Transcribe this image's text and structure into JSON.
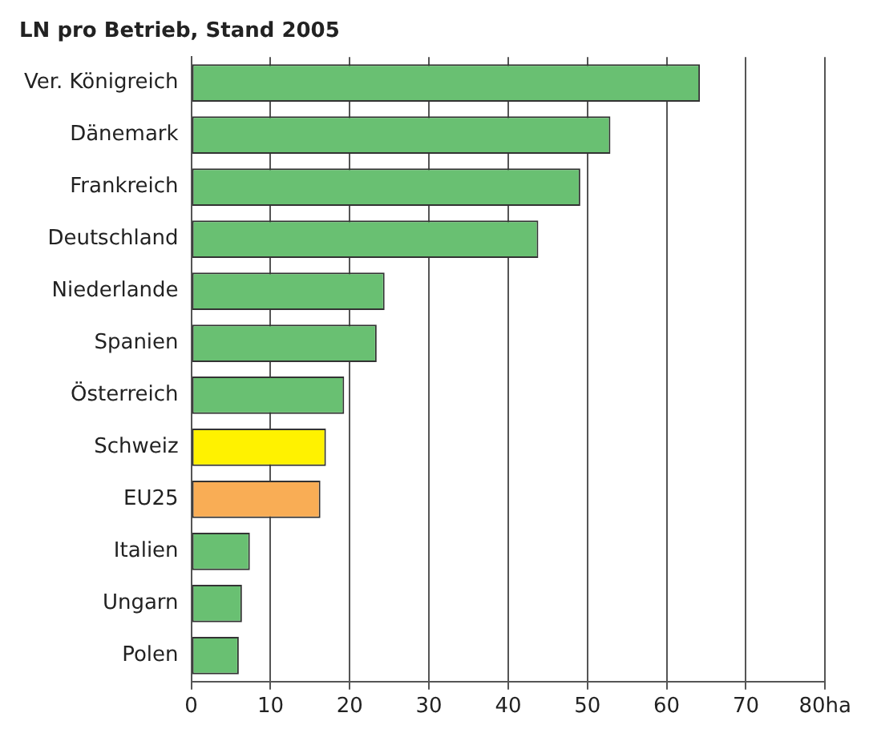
{
  "chart_data": {
    "type": "bar",
    "orientation": "horizontal",
    "title": "LN pro Betrieb, Stand 2005",
    "categories": [
      "Ver. Königreich",
      "Dänemark",
      "Frankreich",
      "Deutschland",
      "Niederlande",
      "Spanien",
      "Österreich",
      "Schweiz",
      "EU25",
      "Italien",
      "Ungarn",
      "Polen"
    ],
    "values": [
      64.2,
      52.9,
      49.1,
      43.8,
      24.4,
      23.4,
      19.3,
      17.0,
      16.3,
      7.4,
      6.4,
      6.0
    ],
    "colors": [
      "#69c072",
      "#69c072",
      "#69c072",
      "#69c072",
      "#69c072",
      "#69c072",
      "#69c072",
      "#fff200",
      "#f9ad55",
      "#69c072",
      "#69c072",
      "#69c072"
    ],
    "xlim": [
      0,
      80
    ],
    "xticks": [
      0,
      10,
      20,
      30,
      40,
      50,
      60,
      70,
      {
        "value": 80,
        "label": "80ha"
      }
    ],
    "grid": "x",
    "legend": false
  }
}
